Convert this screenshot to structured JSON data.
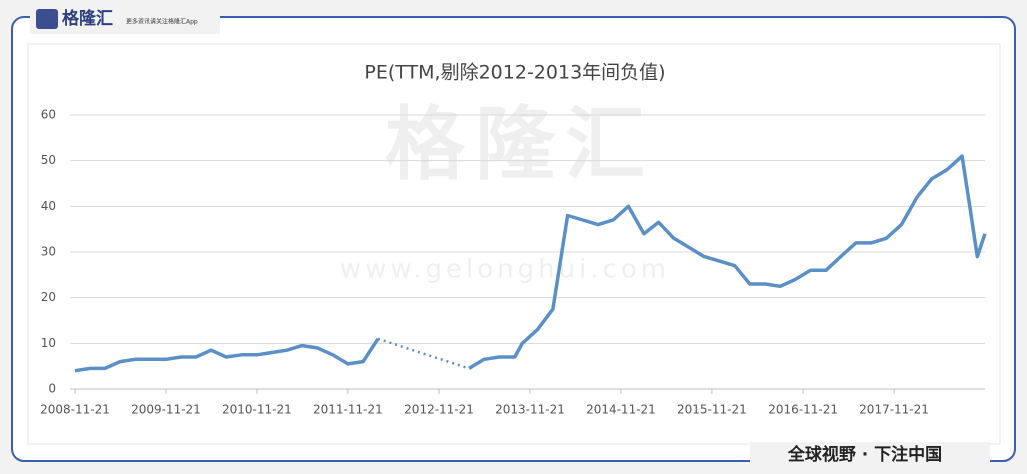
{
  "brand": {
    "name": "格隆汇",
    "tagline": "更多资讯请关注格隆汇App",
    "slogan": "全球视野 · 下注中国",
    "watermark": "格隆汇",
    "watermark_url": "www.gelonghui.com"
  },
  "chart_data": {
    "type": "line",
    "title": "PE(TTM,剔除2012-2013年间负值)",
    "x": [
      "2008-11-21",
      "2009-01-21",
      "2009-03-21",
      "2009-05-21",
      "2009-07-21",
      "2009-09-21",
      "2009-11-21",
      "2010-01-21",
      "2010-03-21",
      "2010-05-21",
      "2010-07-21",
      "2010-09-21",
      "2010-11-21",
      "2011-01-21",
      "2011-03-21",
      "2011-05-21",
      "2011-07-21",
      "2011-09-21",
      "2011-11-21",
      "2012-01-21",
      "2012-03-21",
      "2012-09-21",
      "2013-03-21",
      "2013-05-21",
      "2013-07-21",
      "2013-09-21",
      "2013-10-21",
      "2013-12-21",
      "2014-02-21",
      "2014-04-21",
      "2014-06-21",
      "2014-08-21",
      "2014-10-21",
      "2014-12-21",
      "2015-02-21",
      "2015-04-21",
      "2015-06-21",
      "2015-08-21",
      "2015-10-21",
      "2015-12-21",
      "2016-02-21",
      "2016-04-21",
      "2016-06-21",
      "2016-08-21",
      "2016-10-21",
      "2016-12-21",
      "2017-02-21",
      "2017-04-21",
      "2017-06-21",
      "2017-08-21",
      "2017-10-21",
      "2017-12-21",
      "2018-02-21",
      "2018-04-21",
      "2018-06-21",
      "2018-08-21",
      "2018-09-21",
      "2018-10-21",
      "2018-11-21"
    ],
    "series": [
      {
        "name": "PE(TTM)",
        "color": "#5b8fc8",
        "values": [
          4,
          4.5,
          4.5,
          6,
          6.5,
          6.5,
          6.5,
          7,
          7,
          8.5,
          7,
          7.5,
          7.5,
          8,
          8.5,
          9.5,
          9,
          7.5,
          5.5,
          6,
          11,
          null,
          4.5,
          6.5,
          7,
          7,
          10,
          13,
          17.5,
          38,
          37,
          36,
          37,
          40,
          34,
          36.5,
          33,
          31,
          29,
          28,
          27,
          23,
          23,
          22.5,
          24,
          26,
          26,
          29,
          32,
          32,
          33,
          36,
          42,
          46,
          48,
          51,
          40,
          29,
          34
        ]
      }
    ],
    "xlim": [
      "2008-11-21",
      "2018-11-21"
    ],
    "xticks": [
      "2008-11-21",
      "2009-11-21",
      "2010-11-21",
      "2011-11-21",
      "2012-11-21",
      "2013-11-21",
      "2014-11-21",
      "2015-11-21",
      "2016-11-21",
      "2017-11-21"
    ],
    "ylim": [
      0,
      60
    ],
    "yticks": [
      0,
      10,
      20,
      30,
      40,
      50,
      60
    ],
    "grid": true
  }
}
